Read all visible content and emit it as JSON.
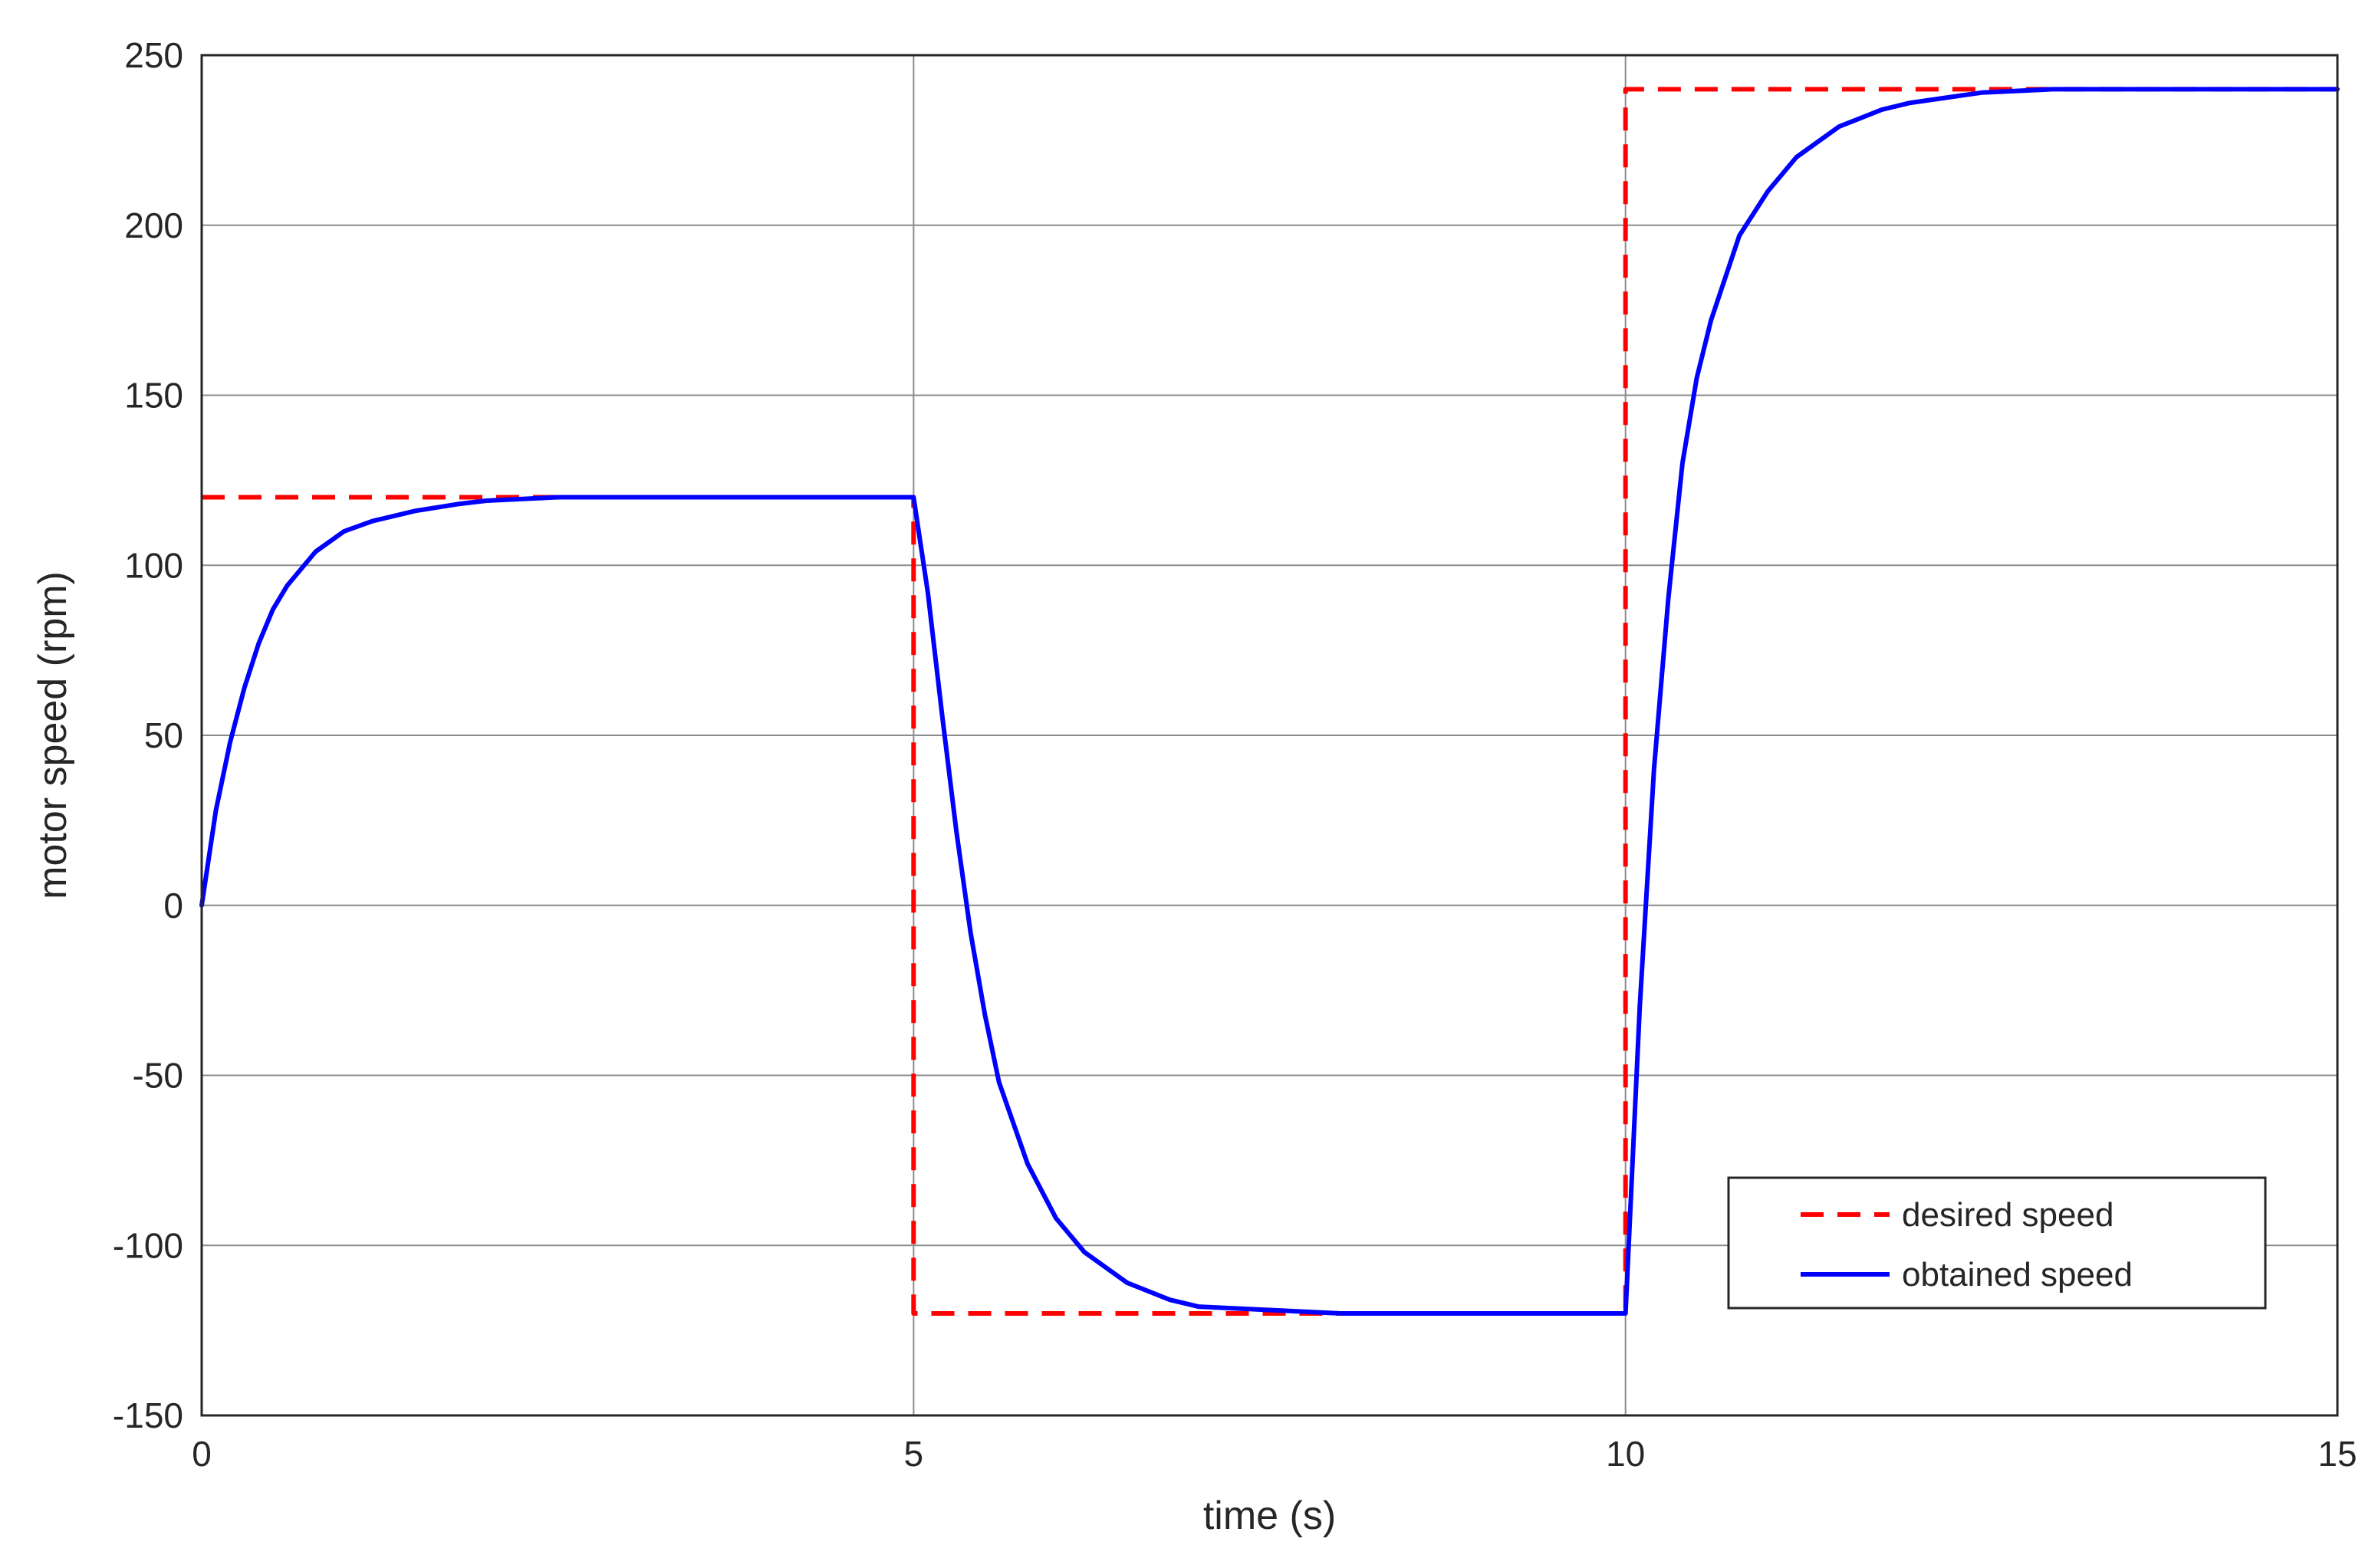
{
  "chart_data": {
    "type": "line",
    "title": "",
    "xlabel": "time (s)",
    "ylabel": "motor speed (rpm)",
    "xlim": [
      0,
      15
    ],
    "ylim": [
      -150,
      250
    ],
    "xticks": [
      0,
      5,
      10,
      15
    ],
    "yticks": [
      250,
      200,
      150,
      100,
      50,
      0,
      -50,
      -100,
      -150
    ],
    "grid": true,
    "legend_position": "lower-right",
    "series": [
      {
        "name": "desired speed",
        "style": "dashed",
        "color": "#ff0000",
        "x": [
          0,
          5,
          5,
          10,
          10,
          15
        ],
        "y": [
          120,
          120,
          -120,
          -120,
          240,
          240
        ]
      },
      {
        "name": "obtained speed",
        "style": "solid",
        "color": "#0000ff",
        "x": [
          0,
          0.1,
          0.2,
          0.3,
          0.4,
          0.5,
          0.6,
          0.8,
          1.0,
          1.2,
          1.5,
          1.8,
          2.0,
          2.5,
          3.0,
          3.5,
          4.0,
          4.5,
          4.9,
          5.0,
          5.1,
          5.2,
          5.3,
          5.4,
          5.5,
          5.6,
          5.8,
          6.0,
          6.2,
          6.5,
          6.8,
          7.0,
          7.5,
          8.0,
          8.5,
          9.0,
          9.5,
          9.9,
          10.0,
          10.1,
          10.2,
          10.3,
          10.4,
          10.5,
          10.6,
          10.8,
          11.0,
          11.2,
          11.5,
          11.8,
          12.0,
          12.5,
          13.0,
          13.5,
          14.0,
          14.5,
          15.0
        ],
        "y": [
          0,
          28,
          48,
          64,
          77,
          87,
          94,
          104,
          110,
          113,
          116,
          118,
          119,
          120,
          120,
          120,
          120,
          120,
          120,
          120,
          92,
          56,
          22,
          -8,
          -32,
          -52,
          -76,
          -92,
          -102,
          -111,
          -116,
          -118,
          -119,
          -120,
          -120,
          -120,
          -120,
          -120,
          -120,
          -30,
          40,
          90,
          130,
          155,
          172,
          197,
          210,
          220,
          229,
          234,
          236,
          239,
          240,
          240,
          240,
          240,
          240
        ]
      }
    ]
  }
}
